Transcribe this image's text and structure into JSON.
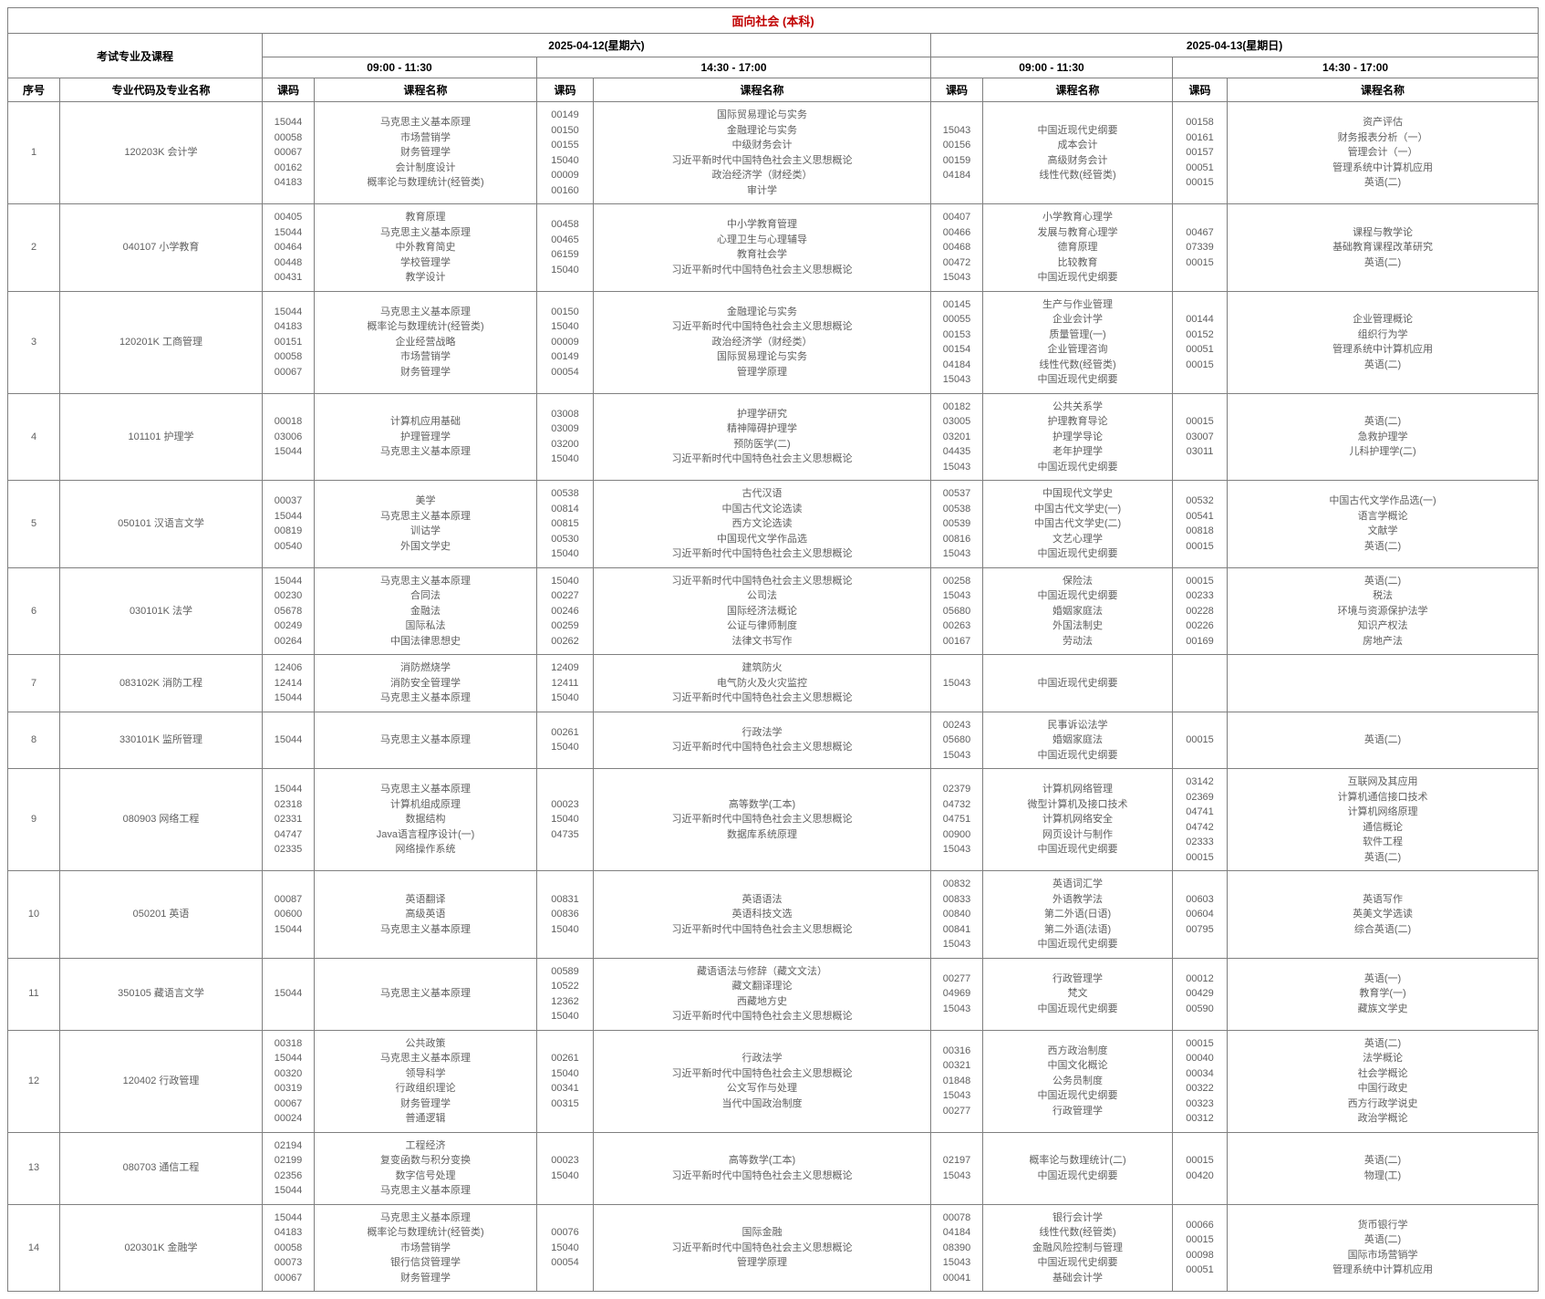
{
  "title": "面向社会 (本科)",
  "header": {
    "exam_label": "考试专业及课程",
    "day1": "2025-04-12(星期六)",
    "day2": "2025-04-13(星期日)",
    "slot_am": "09:00 - 11:30",
    "slot_pm": "14:30 - 17:00",
    "col_no": "序号",
    "col_major": "专业代码及专业名称",
    "col_code": "课码",
    "col_name": "课程名称"
  },
  "colors": {
    "title_text": "#c00000",
    "body_text": "#5f5f5f",
    "border": "#7f7f7f",
    "background": "#ffffff"
  },
  "rows": [
    {
      "no": "1",
      "major": "120203K 会计学",
      "slots": [
        {
          "codes": "15044\n00058\n00067\n00162\n04183",
          "names": "马克思主义基本原理\n市场营销学\n财务管理学\n会计制度设计\n概率论与数理统计(经管类)"
        },
        {
          "codes": "00149\n00150\n00155\n15040\n00009\n00160",
          "names": "国际贸易理论与实务\n金融理论与实务\n中级财务会计\n习近平新时代中国特色社会主义思想概论\n政治经济学（财经类）\n审计学"
        },
        {
          "codes": "15043\n00156\n00159\n04184",
          "names": "中国近现代史纲要\n成本会计\n高级财务会计\n线性代数(经管类)"
        },
        {
          "codes": "00158\n00161\n00157\n00051\n00015",
          "names": "资产评估\n财务报表分析（一）\n管理会计（一）\n管理系统中计算机应用\n英语(二)"
        }
      ]
    },
    {
      "no": "2",
      "major": "040107 小学教育",
      "slots": [
        {
          "codes": "00405\n15044\n00464\n00448\n00431",
          "names": "教育原理\n马克思主义基本原理\n中外教育简史\n学校管理学\n教学设计"
        },
        {
          "codes": "00458\n00465\n06159\n15040",
          "names": "中小学教育管理\n心理卫生与心理辅导\n教育社会学\n习近平新时代中国特色社会主义思想概论"
        },
        {
          "codes": "00407\n00466\n00468\n00472\n15043",
          "names": "小学教育心理学\n发展与教育心理学\n德育原理\n比较教育\n中国近现代史纲要"
        },
        {
          "codes": "00467\n07339\n00015",
          "names": "课程与教学论\n基础教育课程改革研究\n英语(二)"
        }
      ]
    },
    {
      "no": "3",
      "major": "120201K 工商管理",
      "slots": [
        {
          "codes": "15044\n04183\n00151\n00058\n00067",
          "names": "马克思主义基本原理\n概率论与数理统计(经管类)\n企业经营战略\n市场营销学\n财务管理学"
        },
        {
          "codes": "00150\n15040\n00009\n00149\n00054",
          "names": "金融理论与实务\n习近平新时代中国特色社会主义思想概论\n政治经济学（财经类）\n国际贸易理论与实务\n管理学原理"
        },
        {
          "codes": "00145\n00055\n00153\n00154\n04184\n15043",
          "names": "生产与作业管理\n企业会计学\n质量管理(一)\n企业管理咨询\n线性代数(经管类)\n中国近现代史纲要"
        },
        {
          "codes": "00144\n00152\n00051\n00015",
          "names": "企业管理概论\n组织行为学\n管理系统中计算机应用\n英语(二)"
        }
      ]
    },
    {
      "no": "4",
      "major": "101101 护理学",
      "slots": [
        {
          "codes": "00018\n03006\n15044",
          "names": "计算机应用基础\n护理管理学\n马克思主义基本原理"
        },
        {
          "codes": "03008\n03009\n03200\n15040",
          "names": "护理学研究\n精神障碍护理学\n预防医学(二)\n习近平新时代中国特色社会主义思想概论"
        },
        {
          "codes": "00182\n03005\n03201\n04435\n15043",
          "names": "公共关系学\n护理教育导论\n护理学导论\n老年护理学\n中国近现代史纲要"
        },
        {
          "codes": "00015\n03007\n03011",
          "names": "英语(二)\n急救护理学\n儿科护理学(二)"
        }
      ]
    },
    {
      "no": "5",
      "major": "050101 汉语言文学",
      "slots": [
        {
          "codes": "00037\n15044\n00819\n00540",
          "names": "美学\n马克思主义基本原理\n训诂学\n外国文学史"
        },
        {
          "codes": "00538\n00814\n00815\n00530\n15040",
          "names": "古代汉语\n中国古代文论选读\n西方文论选读\n中国现代文学作品选\n习近平新时代中国特色社会主义思想概论"
        },
        {
          "codes": "00537\n00538\n00539\n00816\n15043",
          "names": "中国现代文学史\n中国古代文学史(一)\n中国古代文学史(二)\n文艺心理学\n中国近现代史纲要"
        },
        {
          "codes": "00532\n00541\n00818\n00015",
          "names": "中国古代文学作品选(一)\n语言学概论\n文献学\n英语(二)"
        }
      ]
    },
    {
      "no": "6",
      "major": "030101K 法学",
      "slots": [
        {
          "codes": "15044\n00230\n05678\n00249\n00264",
          "names": "马克思主义基本原理\n合同法\n金融法\n国际私法\n中国法律思想史"
        },
        {
          "codes": "15040\n00227\n00246\n00259\n00262",
          "names": "习近平新时代中国特色社会主义思想概论\n公司法\n国际经济法概论\n公证与律师制度\n法律文书写作"
        },
        {
          "codes": "00258\n15043\n05680\n00263\n00167",
          "names": "保险法\n中国近现代史纲要\n婚姻家庭法\n外国法制史\n劳动法"
        },
        {
          "codes": "00015\n00233\n00228\n00226\n00169",
          "names": "英语(二)\n税法\n环境与资源保护法学\n知识产权法\n房地产法"
        }
      ]
    },
    {
      "no": "7",
      "major": "083102K 消防工程",
      "slots": [
        {
          "codes": "12406\n12414\n15044",
          "names": "消防燃烧学\n消防安全管理学\n马克思主义基本原理"
        },
        {
          "codes": "12409\n12411\n15040",
          "names": "建筑防火\n电气防火及火灾监控\n习近平新时代中国特色社会主义思想概论"
        },
        {
          "codes": "15043",
          "names": "中国近现代史纲要"
        },
        {
          "codes": "",
          "names": ""
        }
      ]
    },
    {
      "no": "8",
      "major": "330101K 监所管理",
      "slots": [
        {
          "codes": "15044",
          "names": "马克思主义基本原理"
        },
        {
          "codes": "00261\n15040",
          "names": "行政法学\n习近平新时代中国特色社会主义思想概论"
        },
        {
          "codes": "00243\n05680\n15043",
          "names": "民事诉讼法学\n婚姻家庭法\n中国近现代史纲要"
        },
        {
          "codes": "00015",
          "names": "英语(二)"
        }
      ]
    },
    {
      "no": "9",
      "major": "080903 网络工程",
      "slots": [
        {
          "codes": "15044\n02318\n02331\n04747\n02335",
          "names": "马克思主义基本原理\n计算机组成原理\n数据结构\nJava语言程序设计(一)\n网络操作系统"
        },
        {
          "codes": "00023\n15040\n04735",
          "names": "高等数学(工本)\n习近平新时代中国特色社会主义思想概论\n数据库系统原理"
        },
        {
          "codes": "02379\n04732\n04751\n00900\n15043",
          "names": "计算机网络管理\n微型计算机及接口技术\n计算机网络安全\n网页设计与制作\n中国近现代史纲要"
        },
        {
          "codes": "03142\n02369\n04741\n04742\n02333\n00015",
          "names": "互联网及其应用\n计算机通信接口技术\n计算机网络原理\n通信概论\n软件工程\n英语(二)"
        }
      ]
    },
    {
      "no": "10",
      "major": "050201 英语",
      "slots": [
        {
          "codes": "00087\n00600\n15044",
          "names": "英语翻译\n高级英语\n马克思主义基本原理"
        },
        {
          "codes": "00831\n00836\n15040",
          "names": "英语语法\n英语科技文选\n习近平新时代中国特色社会主义思想概论"
        },
        {
          "codes": "00832\n00833\n00840\n00841\n15043",
          "names": "英语词汇学\n外语教学法\n第二外语(日语)\n第二外语(法语)\n中国近现代史纲要"
        },
        {
          "codes": "00603\n00604\n00795",
          "names": "英语写作\n英美文学选读\n综合英语(二)"
        }
      ]
    },
    {
      "no": "11",
      "major": "350105 藏语言文学",
      "slots": [
        {
          "codes": "15044",
          "names": "马克思主义基本原理"
        },
        {
          "codes": "00589\n10522\n12362\n15040",
          "names": "藏语语法与修辞（藏文文法）\n藏文翻译理论\n西藏地方史\n习近平新时代中国特色社会主义思想概论"
        },
        {
          "codes": "00277\n04969\n15043",
          "names": "行政管理学\n梵文\n中国近现代史纲要"
        },
        {
          "codes": "00012\n00429\n00590",
          "names": "英语(一)\n教育学(一)\n藏族文学史"
        }
      ]
    },
    {
      "no": "12",
      "major": "120402 行政管理",
      "slots": [
        {
          "codes": "00318\n15044\n00320\n00319\n00067\n00024",
          "names": "公共政策\n马克思主义基本原理\n领导科学\n行政组织理论\n财务管理学\n普通逻辑"
        },
        {
          "codes": "00261\n15040\n00341\n00315",
          "names": "行政法学\n习近平新时代中国特色社会主义思想概论\n公文写作与处理\n当代中国政治制度"
        },
        {
          "codes": "00316\n00321\n01848\n15043\n00277",
          "names": "西方政治制度\n中国文化概论\n公务员制度\n中国近现代史纲要\n行政管理学"
        },
        {
          "codes": "00015\n00040\n00034\n00322\n00323\n00312",
          "names": "英语(二)\n法学概论\n社会学概论\n中国行政史\n西方行政学说史\n政治学概论"
        }
      ]
    },
    {
      "no": "13",
      "major": "080703 通信工程",
      "slots": [
        {
          "codes": "02194\n02199\n02356\n15044",
          "names": "工程经济\n复变函数与积分变换\n数字信号处理\n马克思主义基本原理"
        },
        {
          "codes": "00023\n15040",
          "names": "高等数学(工本)\n习近平新时代中国特色社会主义思想概论"
        },
        {
          "codes": "02197\n15043",
          "names": "概率论与数理统计(二)\n中国近现代史纲要"
        },
        {
          "codes": "00015\n00420",
          "names": "英语(二)\n物理(工)"
        }
      ]
    },
    {
      "no": "14",
      "major": "020301K 金融学",
      "slots": [
        {
          "codes": "15044\n04183\n00058\n00073\n00067",
          "names": "马克思主义基本原理\n概率论与数理统计(经管类)\n市场营销学\n银行信贷管理学\n财务管理学"
        },
        {
          "codes": "00076\n15040\n00054",
          "names": "国际金融\n习近平新时代中国特色社会主义思想概论\n管理学原理"
        },
        {
          "codes": "00078\n04184\n08390\n15043\n00041",
          "names": "银行会计学\n线性代数(经管类)\n金融风险控制与管理\n中国近现代史纲要\n基础会计学"
        },
        {
          "codes": "00066\n00015\n00098\n00051",
          "names": "货币银行学\n英语(二)\n国际市场营销学\n管理系统中计算机应用"
        }
      ]
    }
  ]
}
